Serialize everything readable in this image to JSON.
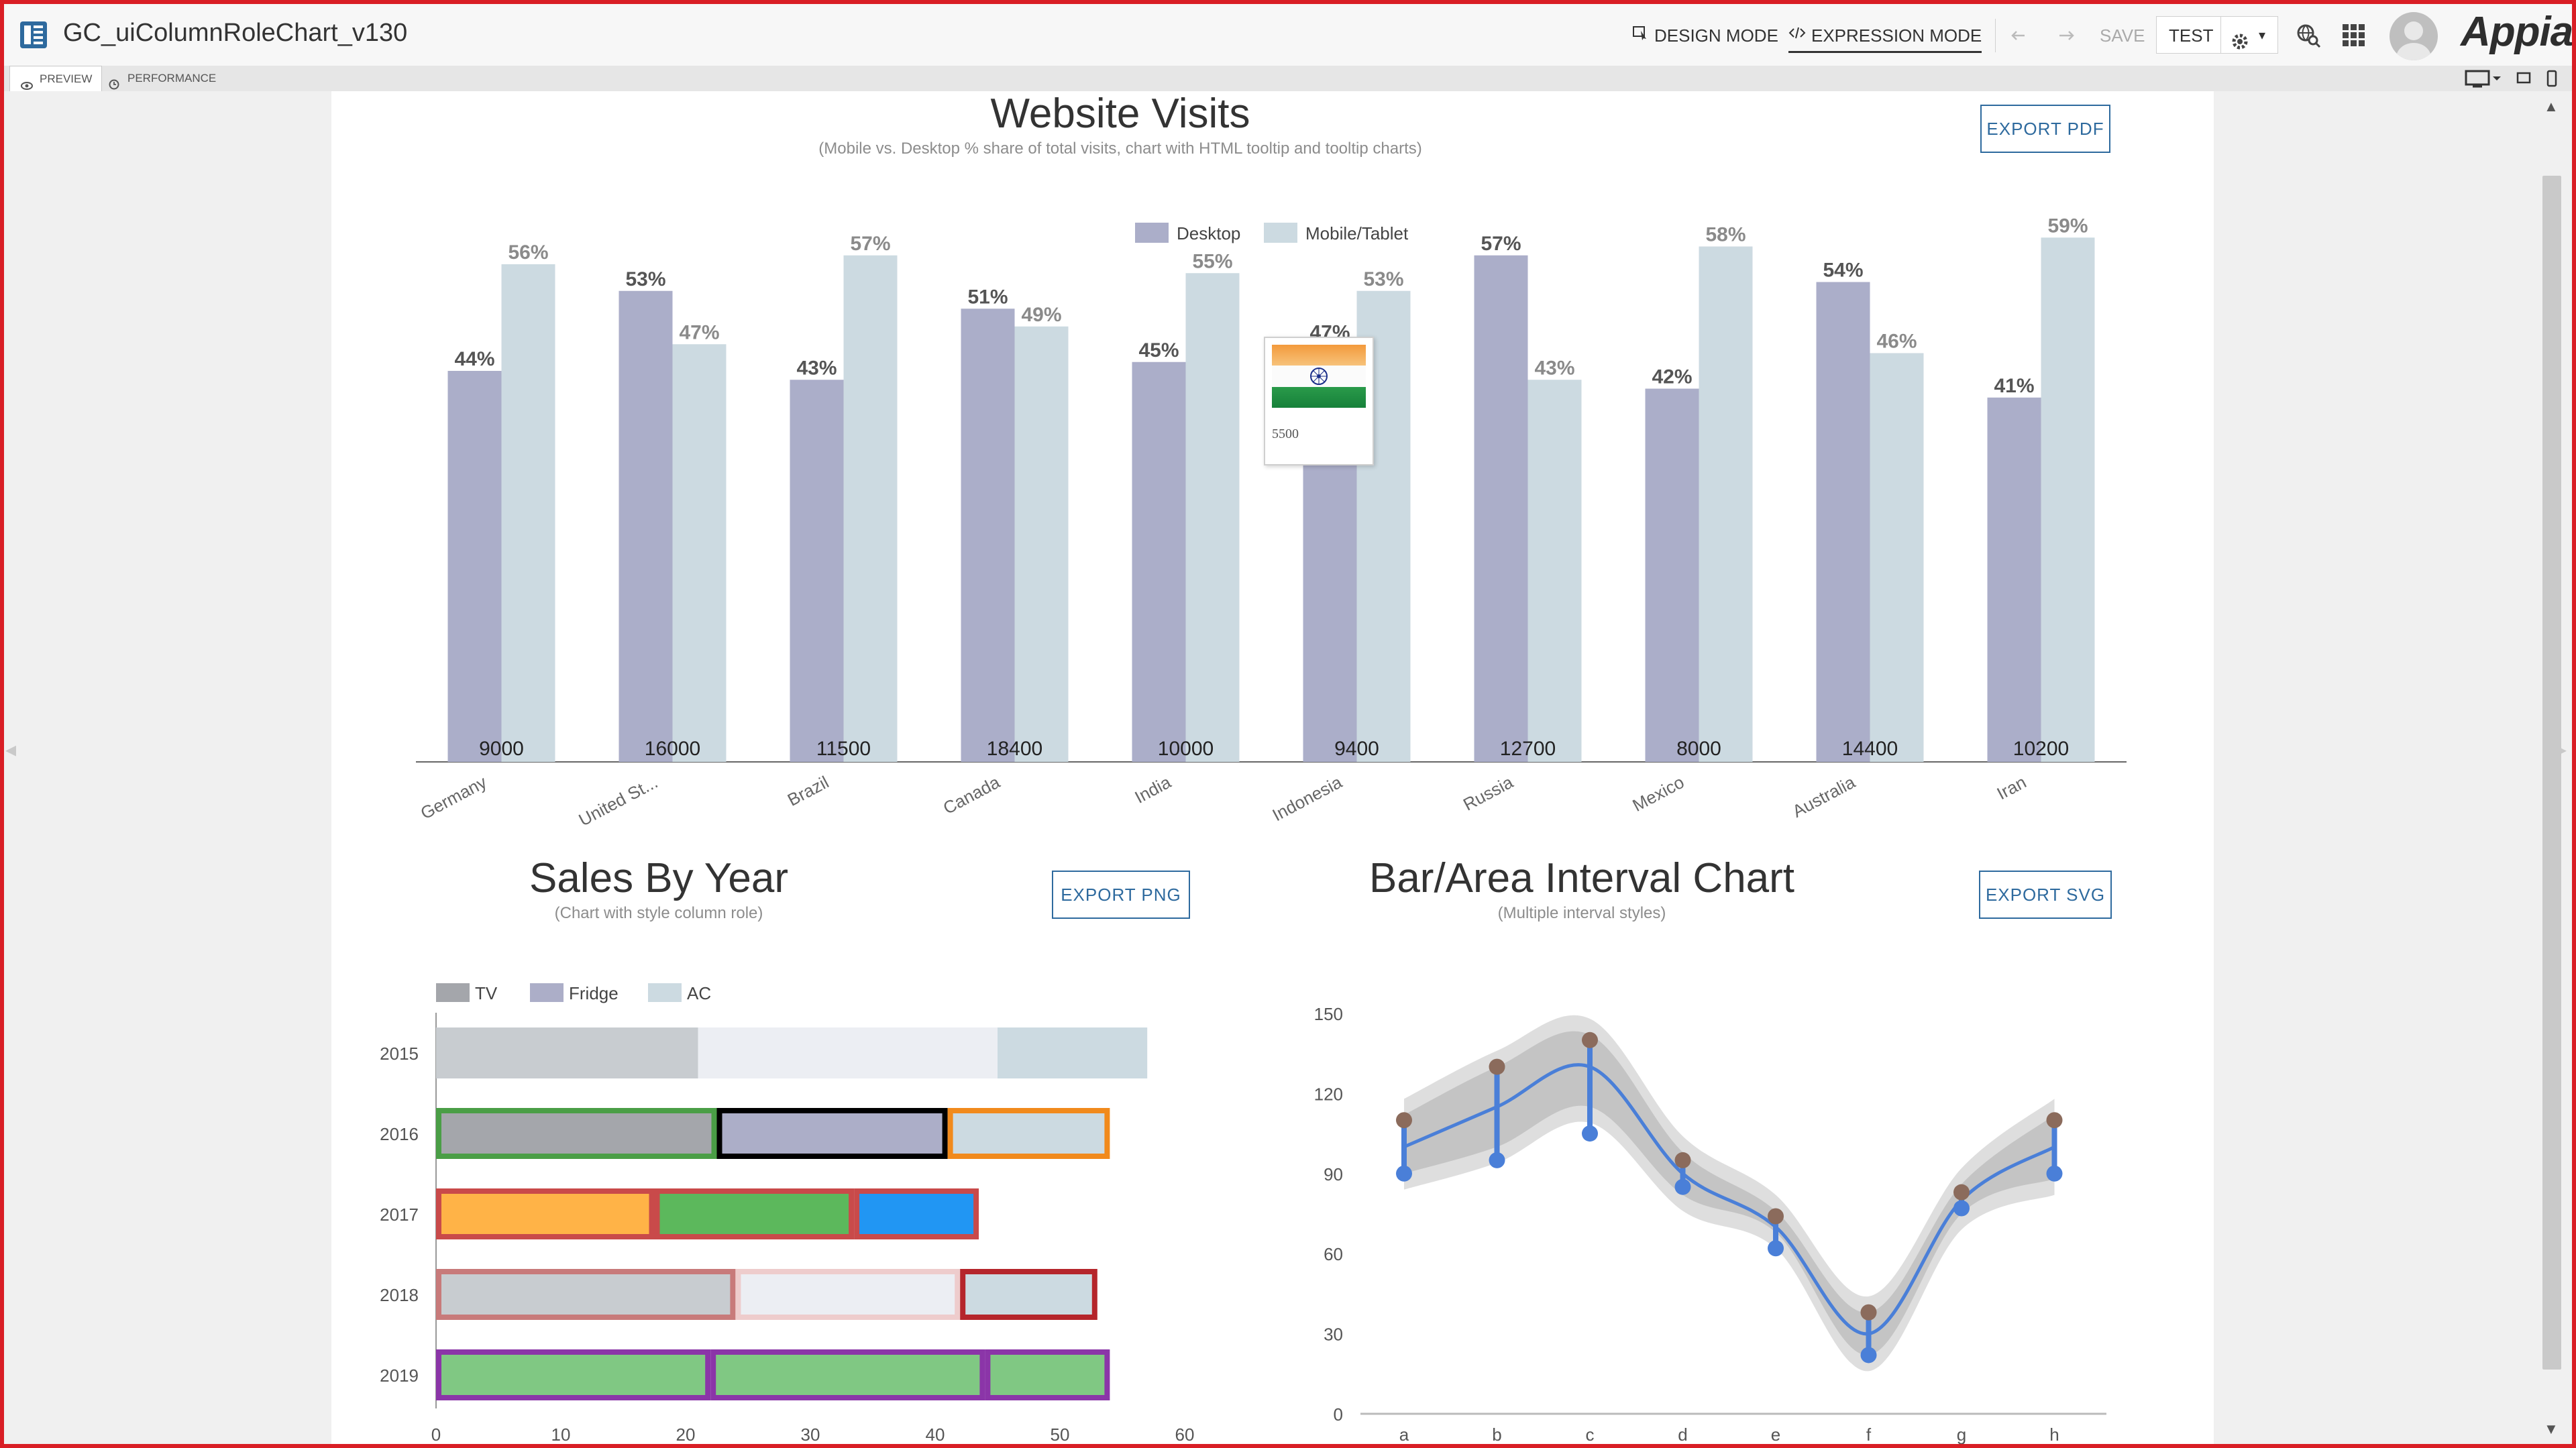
{
  "app": {
    "title": "GC_uiColumnRoleChart_v130",
    "logo": "Appian"
  },
  "header": {
    "design_mode": "DESIGN MODE",
    "expression_mode": "EXPRESSION MODE",
    "save": "SAVE",
    "test": "TEST"
  },
  "subtabs": {
    "preview": "PREVIEW",
    "performance": "PERFORMANCE"
  },
  "tooltip": {
    "value": "5500"
  },
  "colors": {
    "desktop": "#abaec9",
    "mobile": "#ccdae1",
    "tv": "#a4a6ab",
    "fridge": "#acaec8",
    "ac": "#ccdae1",
    "accent_blue": "#2e6a9e",
    "interval_line": "#4a7fd8",
    "interval_point_low": "#4a7fd8",
    "interval_point_high": "#8b6b5c"
  },
  "icons": [
    "interface-icon",
    "design-mode-icon",
    "code-icon",
    "undo-icon",
    "redo-icon",
    "gear-icon",
    "search-globe-icon",
    "grid-apps-icon",
    "user-avatar-icon",
    "monitor-icon",
    "eye-icon",
    "clock-icon"
  ],
  "chart_data": [
    {
      "type": "bar",
      "title": "Website Visits",
      "subtitle": "(Mobile vs. Desktop % share of total visits, chart with HTML tooltip and tooltip charts)",
      "export_label": "EXPORT PDF",
      "legend_position": "top",
      "categories": [
        "Germany",
        "United St...",
        "Brazil",
        "Canada",
        "India",
        "Indonesia",
        "Russia",
        "Mexico",
        "Australia",
        "Iran"
      ],
      "totals": [
        "9000",
        "16000",
        "11500",
        "18400",
        "10000",
        "9400",
        "12700",
        "8000",
        "14400",
        "10200"
      ],
      "series": [
        {
          "name": "Desktop",
          "values": [
            44,
            53,
            43,
            51,
            45,
            47,
            57,
            42,
            54,
            41
          ],
          "labels": [
            "44%",
            "53%",
            "43%",
            "51%",
            "45%",
            "47%",
            "57%",
            "42%",
            "54%",
            "41%"
          ]
        },
        {
          "name": "Mobile/Tablet",
          "values": [
            56,
            47,
            57,
            49,
            55,
            53,
            43,
            58,
            46,
            59
          ],
          "labels": [
            "56%",
            "47%",
            "57%",
            "49%",
            "55%",
            "53%",
            "43%",
            "58%",
            "46%",
            "59%"
          ]
        }
      ],
      "ylim": [
        0,
        60
      ],
      "grid": false
    },
    {
      "type": "bar",
      "orientation": "horizontal",
      "stacked": true,
      "title": "Sales By Year",
      "subtitle": "(Chart with style column role)",
      "export_label": "EXPORT PNG",
      "legend_position": "top-left",
      "categories": [
        "2015",
        "2016",
        "2017",
        "2018",
        "2019"
      ],
      "series": [
        {
          "name": "TV",
          "values": [
            21,
            22.5,
            17.5,
            24,
            22
          ]
        },
        {
          "name": "Fridge",
          "values": [
            24,
            18.5,
            16,
            18,
            22
          ]
        },
        {
          "name": "AC",
          "values": [
            12,
            13,
            10,
            11,
            10
          ]
        }
      ],
      "x_ticks": [
        "0",
        "10",
        "20",
        "30",
        "40",
        "50",
        "60"
      ],
      "xlim": [
        0,
        60
      ],
      "styles": [
        [
          {
            "fill": "#c8ccd0",
            "stroke": "none"
          },
          {
            "fill": "#eceef3",
            "stroke": "none"
          },
          {
            "fill": "#ccdae1",
            "stroke": "none"
          }
        ],
        [
          {
            "fill": "#a4a6ab",
            "stroke": "#4a9e46"
          },
          {
            "fill": "#acaec8",
            "stroke": "#000000"
          },
          {
            "fill": "#ccdae1",
            "stroke": "#f18a1c"
          }
        ],
        [
          {
            "fill": "#ffb347",
            "stroke": "#c94a4a"
          },
          {
            "fill": "#5cb85c",
            "stroke": "#c94a4a"
          },
          {
            "fill": "#2196f3",
            "stroke": "#c94a4a"
          }
        ],
        [
          {
            "fill": "#c8ccd0",
            "stroke": "#c87a7a"
          },
          {
            "fill": "#eceef3",
            "stroke": "#eecccc"
          },
          {
            "fill": "#ccdae1",
            "stroke": "#b5252b"
          }
        ],
        [
          {
            "fill": "#80c883",
            "stroke": "#8b35a8"
          },
          {
            "fill": "#80c883",
            "stroke": "#8b35a8"
          },
          {
            "fill": "#80c883",
            "stroke": "#8b35a8"
          }
        ]
      ]
    },
    {
      "type": "line",
      "title": "Bar/Area Interval Chart",
      "subtitle": "(Multiple interval styles)",
      "export_label": "EXPORT SVG",
      "x": [
        "a",
        "b",
        "c",
        "d",
        "e",
        "f",
        "g",
        "h"
      ],
      "y_ticks": [
        "0",
        "30",
        "60",
        "90",
        "120",
        "150"
      ],
      "ylim": [
        0,
        150
      ],
      "line": [
        100,
        115,
        130,
        90,
        70,
        30,
        80,
        100
      ],
      "interval_low": [
        90,
        95,
        105,
        85,
        62,
        22,
        77,
        90
      ],
      "interval_high": [
        110,
        130,
        140,
        95,
        74,
        38,
        83,
        110
      ],
      "band_low": [
        90,
        100,
        115,
        82,
        68,
        22,
        75,
        88
      ],
      "band_high": [
        112,
        130,
        142,
        98,
        76,
        38,
        86,
        112
      ]
    }
  ]
}
